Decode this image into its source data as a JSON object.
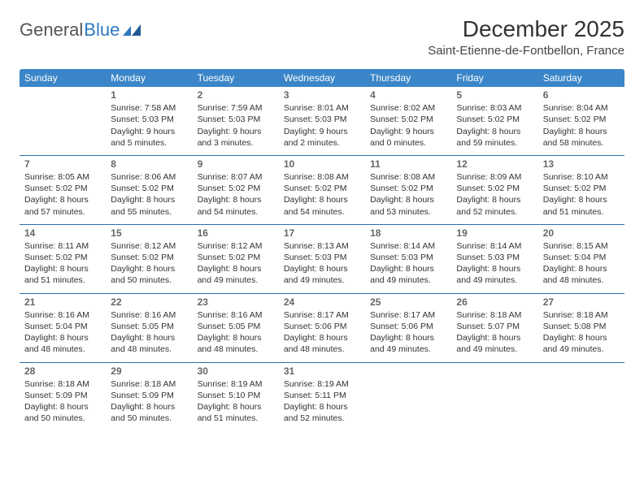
{
  "brand": {
    "part1": "General",
    "part2": "Blue"
  },
  "colors": {
    "header_bg": "#3a86c8",
    "header_text": "#ffffff",
    "rule": "#2f6fa8",
    "brand_blue": "#2f78bf",
    "text": "#333333",
    "daynum": "#666666",
    "background": "#ffffff"
  },
  "title": "December 2025",
  "location": "Saint-Etienne-de-Fontbellon, France",
  "day_headers": [
    "Sunday",
    "Monday",
    "Tuesday",
    "Wednesday",
    "Thursday",
    "Friday",
    "Saturday"
  ],
  "weeks": [
    [
      {
        "day": "",
        "sunrise": "",
        "sunset": "",
        "daylight": ""
      },
      {
        "day": "1",
        "sunrise": "Sunrise: 7:58 AM",
        "sunset": "Sunset: 5:03 PM",
        "daylight": "Daylight: 9 hours and 5 minutes."
      },
      {
        "day": "2",
        "sunrise": "Sunrise: 7:59 AM",
        "sunset": "Sunset: 5:03 PM",
        "daylight": "Daylight: 9 hours and 3 minutes."
      },
      {
        "day": "3",
        "sunrise": "Sunrise: 8:01 AM",
        "sunset": "Sunset: 5:03 PM",
        "daylight": "Daylight: 9 hours and 2 minutes."
      },
      {
        "day": "4",
        "sunrise": "Sunrise: 8:02 AM",
        "sunset": "Sunset: 5:02 PM",
        "daylight": "Daylight: 9 hours and 0 minutes."
      },
      {
        "day": "5",
        "sunrise": "Sunrise: 8:03 AM",
        "sunset": "Sunset: 5:02 PM",
        "daylight": "Daylight: 8 hours and 59 minutes."
      },
      {
        "day": "6",
        "sunrise": "Sunrise: 8:04 AM",
        "sunset": "Sunset: 5:02 PM",
        "daylight": "Daylight: 8 hours and 58 minutes."
      }
    ],
    [
      {
        "day": "7",
        "sunrise": "Sunrise: 8:05 AM",
        "sunset": "Sunset: 5:02 PM",
        "daylight": "Daylight: 8 hours and 57 minutes."
      },
      {
        "day": "8",
        "sunrise": "Sunrise: 8:06 AM",
        "sunset": "Sunset: 5:02 PM",
        "daylight": "Daylight: 8 hours and 55 minutes."
      },
      {
        "day": "9",
        "sunrise": "Sunrise: 8:07 AM",
        "sunset": "Sunset: 5:02 PM",
        "daylight": "Daylight: 8 hours and 54 minutes."
      },
      {
        "day": "10",
        "sunrise": "Sunrise: 8:08 AM",
        "sunset": "Sunset: 5:02 PM",
        "daylight": "Daylight: 8 hours and 54 minutes."
      },
      {
        "day": "11",
        "sunrise": "Sunrise: 8:08 AM",
        "sunset": "Sunset: 5:02 PM",
        "daylight": "Daylight: 8 hours and 53 minutes."
      },
      {
        "day": "12",
        "sunrise": "Sunrise: 8:09 AM",
        "sunset": "Sunset: 5:02 PM",
        "daylight": "Daylight: 8 hours and 52 minutes."
      },
      {
        "day": "13",
        "sunrise": "Sunrise: 8:10 AM",
        "sunset": "Sunset: 5:02 PM",
        "daylight": "Daylight: 8 hours and 51 minutes."
      }
    ],
    [
      {
        "day": "14",
        "sunrise": "Sunrise: 8:11 AM",
        "sunset": "Sunset: 5:02 PM",
        "daylight": "Daylight: 8 hours and 51 minutes."
      },
      {
        "day": "15",
        "sunrise": "Sunrise: 8:12 AM",
        "sunset": "Sunset: 5:02 PM",
        "daylight": "Daylight: 8 hours and 50 minutes."
      },
      {
        "day": "16",
        "sunrise": "Sunrise: 8:12 AM",
        "sunset": "Sunset: 5:02 PM",
        "daylight": "Daylight: 8 hours and 49 minutes."
      },
      {
        "day": "17",
        "sunrise": "Sunrise: 8:13 AM",
        "sunset": "Sunset: 5:03 PM",
        "daylight": "Daylight: 8 hours and 49 minutes."
      },
      {
        "day": "18",
        "sunrise": "Sunrise: 8:14 AM",
        "sunset": "Sunset: 5:03 PM",
        "daylight": "Daylight: 8 hours and 49 minutes."
      },
      {
        "day": "19",
        "sunrise": "Sunrise: 8:14 AM",
        "sunset": "Sunset: 5:03 PM",
        "daylight": "Daylight: 8 hours and 49 minutes."
      },
      {
        "day": "20",
        "sunrise": "Sunrise: 8:15 AM",
        "sunset": "Sunset: 5:04 PM",
        "daylight": "Daylight: 8 hours and 48 minutes."
      }
    ],
    [
      {
        "day": "21",
        "sunrise": "Sunrise: 8:16 AM",
        "sunset": "Sunset: 5:04 PM",
        "daylight": "Daylight: 8 hours and 48 minutes."
      },
      {
        "day": "22",
        "sunrise": "Sunrise: 8:16 AM",
        "sunset": "Sunset: 5:05 PM",
        "daylight": "Daylight: 8 hours and 48 minutes."
      },
      {
        "day": "23",
        "sunrise": "Sunrise: 8:16 AM",
        "sunset": "Sunset: 5:05 PM",
        "daylight": "Daylight: 8 hours and 48 minutes."
      },
      {
        "day": "24",
        "sunrise": "Sunrise: 8:17 AM",
        "sunset": "Sunset: 5:06 PM",
        "daylight": "Daylight: 8 hours and 48 minutes."
      },
      {
        "day": "25",
        "sunrise": "Sunrise: 8:17 AM",
        "sunset": "Sunset: 5:06 PM",
        "daylight": "Daylight: 8 hours and 49 minutes."
      },
      {
        "day": "26",
        "sunrise": "Sunrise: 8:18 AM",
        "sunset": "Sunset: 5:07 PM",
        "daylight": "Daylight: 8 hours and 49 minutes."
      },
      {
        "day": "27",
        "sunrise": "Sunrise: 8:18 AM",
        "sunset": "Sunset: 5:08 PM",
        "daylight": "Daylight: 8 hours and 49 minutes."
      }
    ],
    [
      {
        "day": "28",
        "sunrise": "Sunrise: 8:18 AM",
        "sunset": "Sunset: 5:09 PM",
        "daylight": "Daylight: 8 hours and 50 minutes."
      },
      {
        "day": "29",
        "sunrise": "Sunrise: 8:18 AM",
        "sunset": "Sunset: 5:09 PM",
        "daylight": "Daylight: 8 hours and 50 minutes."
      },
      {
        "day": "30",
        "sunrise": "Sunrise: 8:19 AM",
        "sunset": "Sunset: 5:10 PM",
        "daylight": "Daylight: 8 hours and 51 minutes."
      },
      {
        "day": "31",
        "sunrise": "Sunrise: 8:19 AM",
        "sunset": "Sunset: 5:11 PM",
        "daylight": "Daylight: 8 hours and 52 minutes."
      },
      {
        "day": "",
        "sunrise": "",
        "sunset": "",
        "daylight": ""
      },
      {
        "day": "",
        "sunrise": "",
        "sunset": "",
        "daylight": ""
      },
      {
        "day": "",
        "sunrise": "",
        "sunset": "",
        "daylight": ""
      }
    ]
  ]
}
